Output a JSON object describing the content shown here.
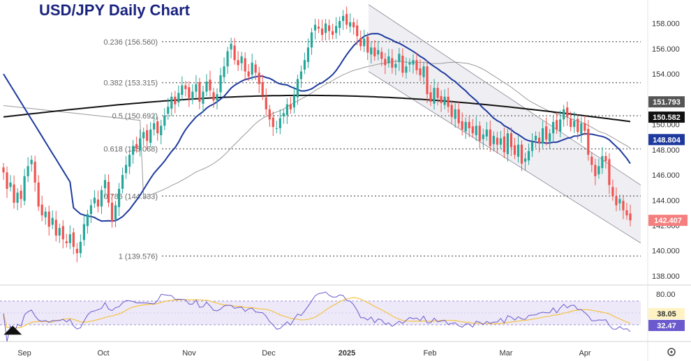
{
  "title": "USD/JPY Daily Chart",
  "settings_icon": "gear-icon",
  "colors": {
    "up": "#26a69a",
    "down": "#ef5350",
    "ma20": "#1e3a9e",
    "ma50": "#999999",
    "ma200": "#111111",
    "rsi": "#6a5acd",
    "rsi_ma": "#f5c243",
    "channel": "#e8e8ee",
    "badge_price": "#f57f7f",
    "badge_ma20": "#1e3a9e",
    "badge_ma50": "#555555",
    "badge_ma200": "#111111",
    "badge_rsi": "#6a5acd",
    "badge_rsi_ma": "#fff3c4"
  },
  "chart_data": {
    "type": "candlestick",
    "title": "USD/JPY Daily Chart",
    "y_ticks": [
      "158.000",
      "156.000",
      "154.000",
      "152.000",
      "150.000",
      "148.000",
      "146.000",
      "144.000",
      "142.000",
      "140.000",
      "138.000"
    ],
    "ylim": [
      137.5,
      159.2
    ],
    "x_labels": [
      "Sep",
      "Oct",
      "Nov",
      "Dec",
      "2025",
      "Feb",
      "Mar",
      "Apr"
    ],
    "fib_levels": [
      {
        "label": "0.236 (156.560)",
        "value": 156.56
      },
      {
        "label": "0.382 (153.315)",
        "value": 153.315
      },
      {
        "label": "0.5 (150.692)",
        "value": 150.692
      },
      {
        "label": "0.618 (148.068)",
        "value": 148.068
      },
      {
        "label": "0.786 (144.333)",
        "value": 144.333
      },
      {
        "label": "1 (139.576)",
        "value": 139.576
      }
    ],
    "channel": {
      "upper": [
        [
          528,
          159.5
        ],
        [
          918,
          145.2
        ]
      ],
      "lower": [
        [
          528,
          154.2
        ],
        [
          918,
          140.6
        ]
      ]
    },
    "closes": [
      146.2,
      144.9,
      145.4,
      143.8,
      144.6,
      144.1,
      145.9,
      146.7,
      147.2,
      145.4,
      143.5,
      142.8,
      143.1,
      141.9,
      142.6,
      141.2,
      141.8,
      140.9,
      140.6,
      141.3,
      140.3,
      139.8,
      140.7,
      142.1,
      142.9,
      143.6,
      144.2,
      143.5,
      144.8,
      145.6,
      143.8,
      142.3,
      143.6,
      144.9,
      146.0,
      146.8,
      147.6,
      148.3,
      148.1,
      148.9,
      149.4,
      148.7,
      149.6,
      150.1,
      149.3,
      149.9,
      150.7,
      151.4,
      152.2,
      151.6,
      152.5,
      153.1,
      152.8,
      152.1,
      152.6,
      153.2,
      151.8,
      152.6,
      153.4,
      152.7,
      151.9,
      152.4,
      153.9,
      154.6,
      155.8,
      156.4,
      155.1,
      154.7,
      155.4,
      154.2,
      153.8,
      154.9,
      154.1,
      153.2,
      152.3,
      151.2,
      150.4,
      149.8,
      149.7,
      150.5,
      150.9,
      151.6,
      151.2,
      152.3,
      153.6,
      154.2,
      155.1,
      156.1,
      157.3,
      157.9,
      157.6,
      157.1,
      158.0,
      157.4,
      157.1,
      157.8,
      158.2,
      158.6,
      157.9,
      158.1,
      157.7,
      157.0,
      156.2,
      156.8,
      155.7,
      156.1,
      155.4,
      155.9,
      155.2,
      154.7,
      155.4,
      154.5,
      154.8,
      155.6,
      154.1,
      154.6,
      154.9,
      155.1,
      154.3,
      153.9,
      154.6,
      152.4,
      151.8,
      152.9,
      152.1,
      151.7,
      152.2,
      151.4,
      150.6,
      151.2,
      150.1,
      149.6,
      150.2,
      149.7,
      149.3,
      149.9,
      148.7,
      149.2,
      149.6,
      148.3,
      149.1,
      148.4,
      148.9,
      147.8,
      149.3,
      148.2,
      147.6,
      148.4,
      146.9,
      147.3,
      147.9,
      148.6,
      149.1,
      148.5,
      149.7,
      148.8,
      149.3,
      150.2,
      149.6,
      150.4,
      151.2,
      150.6,
      149.8,
      150.3,
      149.4,
      150.1,
      149.5,
      147.6,
      146.8,
      145.9,
      146.7,
      147.5,
      147.1,
      145.2,
      144.3,
      143.6,
      144.1,
      143.2,
      142.8,
      142.4
    ]
  },
  "ma_badges": [
    {
      "name": "ma50",
      "value": "151.793"
    },
    {
      "name": "ma200",
      "value": "150.582"
    },
    {
      "name": "ma20",
      "value": "148.804"
    }
  ],
  "price_badge": "142.407",
  "rsi": {
    "y_tick": "80.00",
    "value": "32.47",
    "ma_value": "38.05"
  }
}
